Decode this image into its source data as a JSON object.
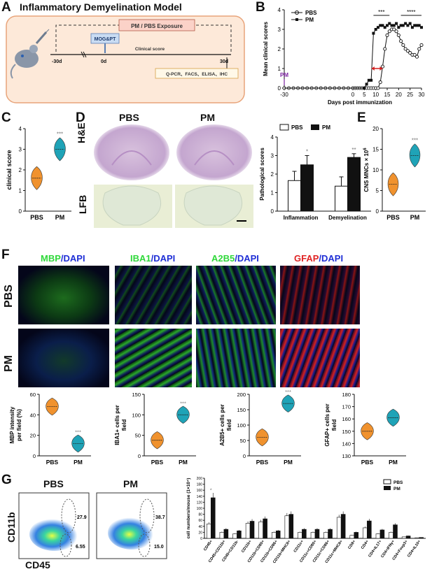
{
  "panels": {
    "A": "A",
    "B": "B",
    "C": "C",
    "D": "D",
    "E": "E",
    "F": "F",
    "G": "G"
  },
  "panelA": {
    "title": "Inflammatory Demyelination Model",
    "exposure": "PM / PBS Exposure",
    "mog": "MOG&PT",
    "clinical": "Clinical score",
    "t_start": "-30d",
    "t_mid": "0d",
    "t_end": "30d",
    "assays": "Q-PCR、FACS、ELISA、IHC",
    "colors": {
      "box_fill": "#fde9d9",
      "box_border": "#e8a47a",
      "exposure_fill": "#fbd2c8",
      "mog_fill": "#c9dcf3"
    }
  },
  "panelB": {
    "ylabel": "Mean clinical scores",
    "xlabel": "Days post immunization",
    "pm_marker": "PM",
    "sig_left": "***",
    "sig_right": "****",
    "chart_data": {
      "type": "line",
      "xlim": [
        -30,
        30
      ],
      "ylim": [
        0,
        4
      ],
      "x_ticks": [
        -30,
        0,
        5,
        10,
        15,
        20,
        25,
        30
      ],
      "y_ticks": [
        0,
        1,
        2,
        3,
        4
      ],
      "x": [
        -30,
        -28,
        -26,
        -24,
        -22,
        -20,
        -18,
        -16,
        -14,
        -12,
        -10,
        -8,
        -6,
        -4,
        -2,
        0,
        1,
        2,
        3,
        4,
        5,
        6,
        7,
        8,
        9,
        10,
        11,
        12,
        13,
        14,
        15,
        16,
        17,
        18,
        19,
        20,
        21,
        22,
        23,
        24,
        25,
        26,
        27,
        28,
        29,
        30
      ],
      "series": [
        {
          "name": "PBS",
          "marker": "open-circle",
          "values": [
            0,
            0,
            0,
            0,
            0,
            0,
            0,
            0,
            0,
            0,
            0,
            0,
            0,
            0,
            0,
            0,
            0,
            0,
            0,
            0,
            0,
            0,
            0,
            0,
            0,
            0,
            0,
            0.3,
            1.1,
            2.0,
            2.7,
            2.9,
            3.0,
            3.0,
            2.9,
            2.7,
            2.4,
            2.2,
            2.0,
            1.9,
            1.8,
            1.7,
            1.7,
            1.6,
            2.0,
            2.2
          ]
        },
        {
          "name": "PM",
          "marker": "filled-square",
          "values": [
            0,
            0,
            0,
            0,
            0,
            0,
            0,
            0,
            0,
            0,
            0,
            0,
            0,
            0,
            0,
            0,
            0,
            0,
            0,
            0,
            0,
            0.2,
            0.4,
            0.4,
            2.8,
            3.0,
            3.1,
            3.2,
            3.2,
            3.1,
            3.2,
            3.3,
            3.2,
            3.2,
            3.3,
            3.1,
            3.2,
            3.2,
            3.3,
            3.2,
            3.3,
            3.1,
            3.2,
            3.2,
            3.2,
            3.1
          ]
        }
      ]
    }
  },
  "panelC": {
    "ylabel": "clinical score",
    "sig": "***",
    "chart_data": {
      "type": "violin",
      "categories": [
        "PBS",
        "PM"
      ],
      "medians": [
        1.6,
        3.0
      ],
      "ylim": [
        0,
        4
      ],
      "y_ticks": [
        0,
        1,
        2,
        3,
        4
      ],
      "colors": [
        "#f0922e",
        "#1fa3b7"
      ]
    }
  },
  "panelD": {
    "col_pbs": "PBS",
    "col_pm": "PM",
    "row_he": "H&E",
    "row_lfb": "LFB",
    "ylabel": "Pathological scores",
    "sig1": "*",
    "sig2": "**",
    "chart_data": {
      "type": "bar",
      "categories": [
        "Inflammation",
        "Demyelination"
      ],
      "series": [
        {
          "name": "PBS",
          "values": [
            1.65,
            1.35
          ],
          "errors": [
            0.5,
            0.5
          ]
        },
        {
          "name": "PM",
          "values": [
            2.5,
            2.9
          ],
          "errors": [
            0.5,
            0.2
          ]
        }
      ],
      "ylim": [
        0,
        4
      ],
      "y_ticks": [
        0,
        1,
        2,
        3,
        4
      ]
    }
  },
  "panelE": {
    "ylabel": "CNS MNCs × 10",
    "ylabel_sup": "6",
    "sig": "***",
    "chart_data": {
      "type": "violin",
      "categories": [
        "PBS",
        "PM"
      ],
      "medians": [
        6.5,
        13.5
      ],
      "ylim": [
        0,
        20
      ],
      "y_ticks": [
        0,
        5,
        10,
        15,
        20
      ],
      "colors": [
        "#f0922e",
        "#1fa3b7"
      ]
    }
  },
  "panelF": {
    "stains": [
      {
        "marker": "MBP",
        "dapi": "/DAPI",
        "color": "#2fd83a"
      },
      {
        "marker": "IBA1",
        "dapi": "/DAPI",
        "color": "#2fd83a"
      },
      {
        "marker": "A2B5",
        "dapi": "/DAPI",
        "color": "#2fd83a"
      },
      {
        "marker": "GFAP",
        "dapi": "/DAPI",
        "color": "#e02424"
      }
    ],
    "rows": [
      "PBS",
      "PM"
    ],
    "charts": [
      {
        "ylabel1": "MBP intensity",
        "ylabel2": "per field (%)",
        "sig": "***",
        "y_ticks": [
          0,
          20,
          40,
          60
        ],
        "ylim": [
          0,
          60
        ],
        "medians": [
          48,
          12
        ]
      },
      {
        "ylabel1": "IBA1+ cells per",
        "ylabel2": "field",
        "sig": "***",
        "y_ticks": [
          0,
          50,
          100,
          150
        ],
        "ylim": [
          0,
          150
        ],
        "medians": [
          38,
          100
        ]
      },
      {
        "ylabel1": "A2B5+ cells per",
        "ylabel2": "field",
        "sig": "***",
        "y_ticks": [
          0,
          50,
          100,
          150,
          200
        ],
        "ylim": [
          0,
          200
        ],
        "medians": [
          60,
          170
        ]
      },
      {
        "ylabel1": "GFAP+ cells per",
        "ylabel2": "field",
        "sig": "",
        "y_ticks": [
          130,
          140,
          150,
          160,
          170,
          180
        ],
        "ylim": [
          130,
          180
        ],
        "medians": [
          150,
          161
        ]
      }
    ],
    "categories": [
      "PBS",
      "PM"
    ]
  },
  "panelG": {
    "flow_pbs": "PBS",
    "flow_pm": "PM",
    "ylabel": "CD11b",
    "xlabel": "CD45",
    "pbs_hi": "27.9",
    "pbs_lo": "6.55",
    "pm_hi": "38.7",
    "pm_lo": "15.0",
    "bar_ylabel": "cell numbers/mouse (1×10⁴)",
    "chart_data": {
      "type": "bar",
      "categories": [
        "CD45+",
        "CD45+CD11b+",
        "CD45+CD11b-",
        "CD11b+",
        "CD11b+CD80+",
        "CD11b+CD86+",
        "CD11b+MHCII+",
        "CD11c+",
        "CD11c+CD80+",
        "CD11c+CD86+",
        "CD11c+MHCII+",
        "CD8+",
        "CD4+",
        "CD4+IL17+",
        "CD4+IFNγ+",
        "CD4+Foxp3+",
        "CD4+IL10+"
      ],
      "series": [
        {
          "name": "PBS",
          "values": [
            48,
            20,
            15,
            50,
            55,
            20,
            75,
            20,
            20,
            20,
            70,
            10,
            35,
            15,
            20,
            5,
            2
          ]
        },
        {
          "name": "PM",
          "values": [
            135,
            30,
            25,
            57,
            65,
            25,
            80,
            30,
            30,
            30,
            80,
            20,
            58,
            28,
            45,
            8,
            3
          ]
        }
      ],
      "ylim": [
        0,
        200
      ],
      "y_ticks": [
        0,
        20,
        40,
        60,
        80,
        100,
        120,
        140,
        160,
        180,
        200
      ]
    }
  }
}
